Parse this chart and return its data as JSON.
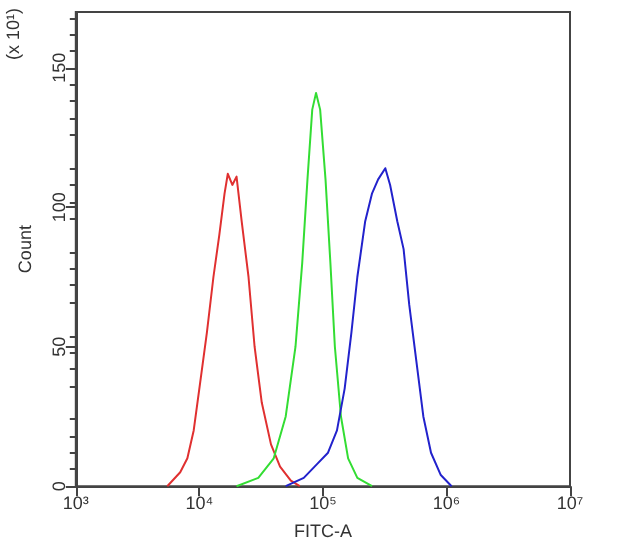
{
  "chart_data": {
    "type": "line",
    "xlabel": "FITC-A",
    "ylabel": "Count",
    "annotations": [
      "(x 10¹)"
    ],
    "log": "x",
    "grid": false,
    "marker": "none",
    "line_style": "solid",
    "xlim": [
      1000,
      10000000
    ],
    "xticks": [
      {
        "value": 1000,
        "label": "10³"
      },
      {
        "value": 10000,
        "label": "10⁴"
      },
      {
        "value": 100000,
        "label": "10⁵"
      },
      {
        "value": 1000000,
        "label": "10⁶"
      },
      {
        "value": 10000000,
        "label": "10⁷"
      }
    ],
    "ylim": [
      0,
      170
    ],
    "yticks": [
      0,
      50,
      100,
      150
    ],
    "series": [
      {
        "color": "#e03030",
        "x": [
          5500,
          7000,
          8000,
          9000,
          10000,
          11500,
          13000,
          14500,
          16000,
          17000,
          18500,
          20000,
          22000,
          25000,
          28000,
          32000,
          38000,
          45000,
          55000,
          65000
        ],
        "values": [
          0,
          5,
          10,
          20,
          35,
          55,
          75,
          90,
          105,
          112,
          108,
          111,
          95,
          75,
          50,
          30,
          15,
          7,
          2,
          0
        ]
      },
      {
        "color": "#33dd33",
        "x": [
          20000,
          30000,
          40000,
          50000,
          60000,
          68000,
          75000,
          82000,
          88000,
          95000,
          105000,
          115000,
          125000,
          140000,
          160000,
          190000,
          250000
        ],
        "values": [
          0,
          3,
          10,
          25,
          50,
          80,
          110,
          135,
          141,
          135,
          110,
          80,
          50,
          25,
          10,
          3,
          0
        ]
      },
      {
        "color": "#2222cc",
        "x": [
          50000,
          70000,
          90000,
          110000,
          130000,
          150000,
          170000,
          190000,
          220000,
          250000,
          280000,
          320000,
          350000,
          400000,
          450000,
          500000,
          570000,
          650000,
          750000,
          900000,
          1100000
        ],
        "values": [
          0,
          3,
          8,
          12,
          20,
          35,
          55,
          75,
          95,
          105,
          110,
          114,
          108,
          95,
          85,
          65,
          45,
          25,
          12,
          4,
          0
        ]
      }
    ]
  }
}
